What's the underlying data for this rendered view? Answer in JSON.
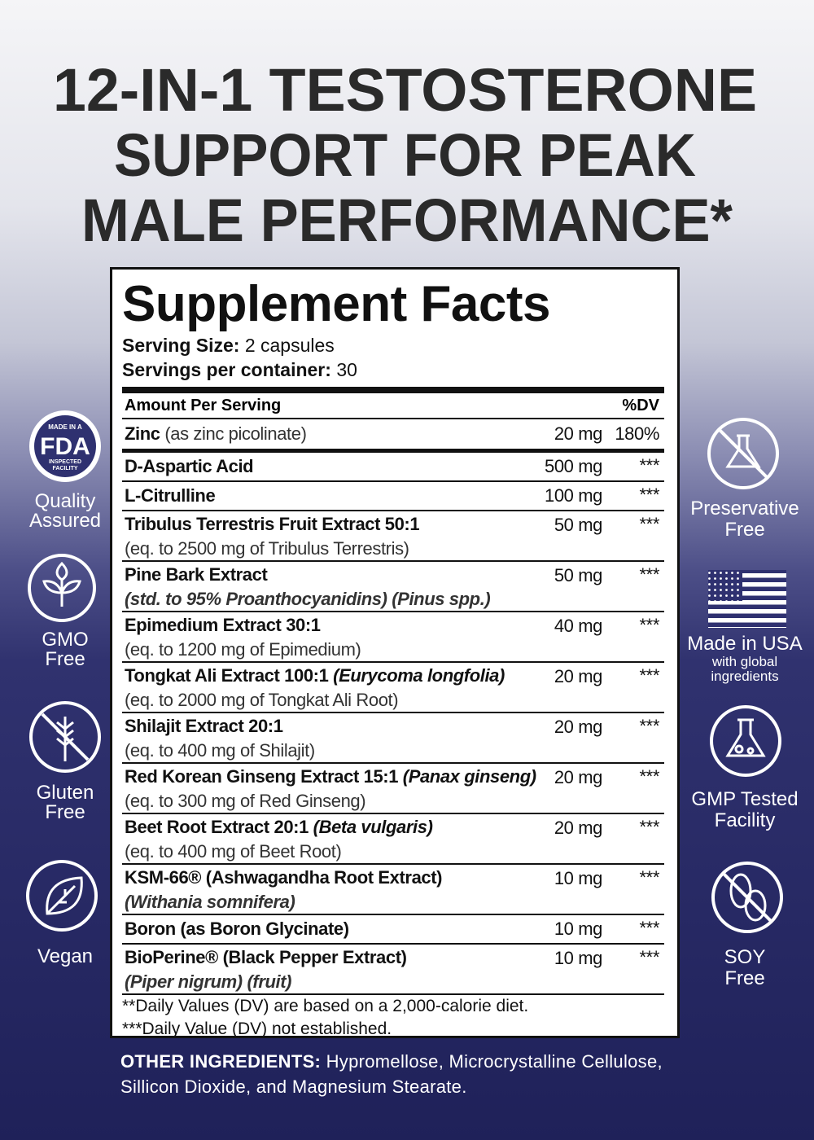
{
  "headline": [
    "12-IN-1 TESTOSTERONE",
    "SUPPORT FOR PEAK",
    "MALE PERFORMANCE*"
  ],
  "facts": {
    "title": "Supplement Facts",
    "serving_size": {
      "label": "Serving Size:",
      "value": "2 capsules"
    },
    "servings_per_container": {
      "label": "Servings per container:",
      "value": "30"
    },
    "header": {
      "amount": "Amount Per Serving",
      "dv": "%DV"
    },
    "zinc": {
      "name": "Zinc",
      "detail": "(as zinc picolinate)",
      "amount": "20 mg",
      "dv": "180%"
    },
    "rows": [
      {
        "name": "D-Aspartic Acid",
        "amount": "500 mg",
        "dv": "***"
      },
      {
        "name": "L-Citrulline",
        "amount": "100 mg",
        "dv": "***"
      },
      {
        "name": "Tribulus Terrestris Fruit Extract 50:1",
        "sub": "(eq. to 2500 mg of Tribulus Terrestris)",
        "amount": "50 mg",
        "dv": "***"
      },
      {
        "name": "Pine Bark Extract",
        "sub_italic": "(std. to 95% Proanthocyanidins) (Pinus spp.)",
        "amount": "50 mg",
        "dv": "***"
      },
      {
        "name": "Epimedium Extract 30:1",
        "sub": "(eq. to 1200 mg of Epimedium)",
        "amount": "40 mg",
        "dv": "***"
      },
      {
        "name": "Tongkat Ali Extract 100:1",
        "name_italic": "(Eurycoma longfolia)",
        "sub": "(eq. to 2000 mg of Tongkat Ali Root)",
        "amount": "20 mg",
        "dv": "***"
      },
      {
        "name": "Shilajit Extract 20:1",
        "sub": "(eq. to 400 mg of Shilajit)",
        "amount": "20 mg",
        "dv": "***"
      },
      {
        "name": "Red Korean Ginseng Extract 15:1",
        "name_italic": "(Panax ginseng)",
        "sub": "(eq. to 300 mg of Red Ginseng)",
        "amount": "20 mg",
        "dv": "***"
      },
      {
        "name": "Beet Root Extract 20:1",
        "name_italic": "(Beta vulgaris)",
        "sub": "(eq. to 400 mg of Beet Root)",
        "amount": "20 mg",
        "dv": "***"
      },
      {
        "name": "KSM-66® (Ashwagandha Root Extract)",
        "sub_italic": "(Withania somnifera)",
        "amount": "10 mg",
        "dv": "***"
      },
      {
        "name": "Boron (as Boron Glycinate)",
        "amount": "10 mg",
        "dv": "***"
      },
      {
        "name": "BioPerine® (Black Pepper Extract)",
        "sub_italic": "(Piper nigrum)",
        "sub": "(fruit)",
        "amount": "10 mg",
        "dv": "***"
      }
    ],
    "footnotes": [
      "**Daily Values (DV) are based on a 2,000-calorie diet.",
      "***Daily Value (DV) not established."
    ]
  },
  "other_ingredients": {
    "label": "OTHER INGREDIENTS:",
    "text": "Hypromellose, Microcrystalline Cellulose, Sillicon Dioxide, and Magnesium Stearate."
  },
  "fda_badge": {
    "top": "MADE IN A",
    "main": "FDA",
    "bottom1": "INSPECTED",
    "bottom2": "FACILITY"
  },
  "badges_left": [
    {
      "lines": [
        "Quality",
        "Assured"
      ]
    },
    {
      "lines": [
        "GMO",
        "Free"
      ]
    },
    {
      "lines": [
        "Gluten",
        "Free"
      ]
    },
    {
      "lines": [
        "Vegan"
      ]
    }
  ],
  "badges_right": [
    {
      "lines": [
        "Preservative",
        "Free"
      ]
    },
    {
      "lines": [
        "Made in USA"
      ],
      "small": [
        "with global",
        "ingredients"
      ]
    },
    {
      "lines": [
        "GMP Tested",
        "Facility"
      ]
    },
    {
      "lines": [
        "SOY",
        "Free"
      ]
    }
  ]
}
